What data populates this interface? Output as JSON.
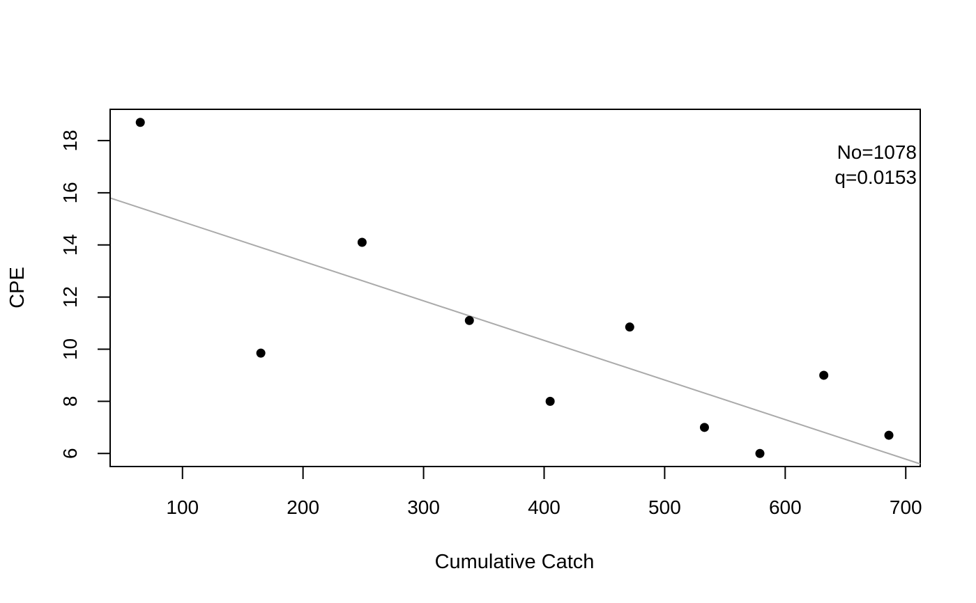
{
  "chart_data": {
    "type": "scatter",
    "title": "",
    "xlabel": "Cumulative Catch",
    "ylabel": "CPE",
    "xlim": [
      40,
      712
    ],
    "ylim": [
      5.5,
      19.2
    ],
    "x_ticks": [
      100,
      200,
      300,
      400,
      500,
      600,
      700
    ],
    "y_ticks": [
      6,
      8,
      10,
      12,
      14,
      16,
      18
    ],
    "grid": false,
    "points": [
      {
        "x": 65,
        "y": 18.7
      },
      {
        "x": 165,
        "y": 9.85
      },
      {
        "x": 249,
        "y": 14.1
      },
      {
        "x": 338,
        "y": 11.1
      },
      {
        "x": 405,
        "y": 8.0
      },
      {
        "x": 471,
        "y": 10.85
      },
      {
        "x": 533,
        "y": 7.0
      },
      {
        "x": 579,
        "y": 6.0
      },
      {
        "x": 632,
        "y": 9.0
      },
      {
        "x": 686,
        "y": 6.7
      }
    ],
    "fit_line": {
      "color": "#aaaaaa",
      "points": [
        [
          40,
          15.8
        ],
        [
          712,
          5.6
        ]
      ]
    },
    "annotations": [
      "No=1078",
      "q=0.0153"
    ],
    "point_color": "#000000"
  }
}
